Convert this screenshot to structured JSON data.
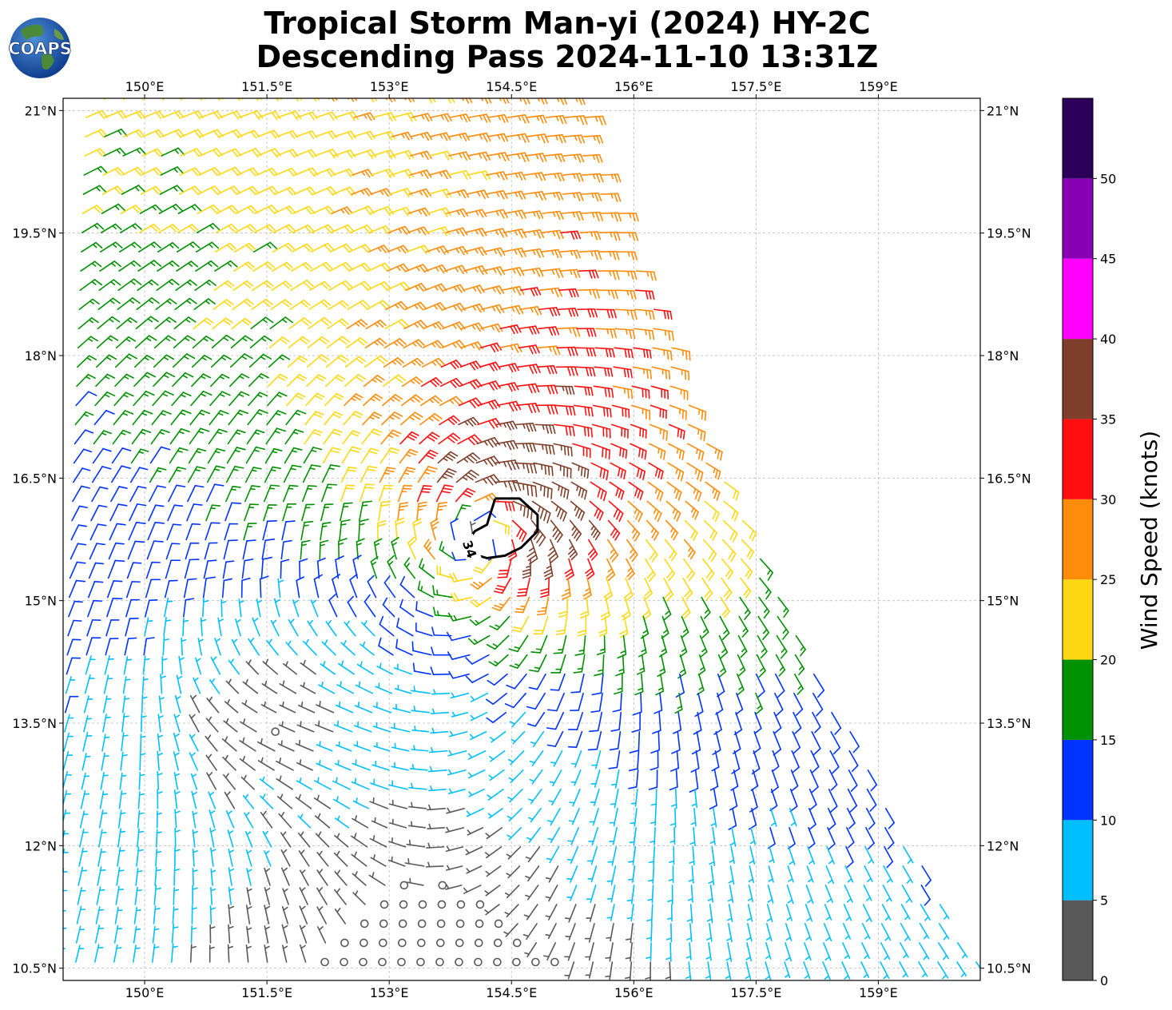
{
  "header": {
    "title_line1": "Tropical Storm Man-yi (2024) HY-2C",
    "title_line2": "Descending Pass 2024-11-10 13:31Z",
    "logo_text": "COAPS"
  },
  "map": {
    "lon_range": [
      149.0,
      160.25
    ],
    "lat_range": [
      10.35,
      21.15
    ],
    "lon_ticks": [
      {
        "value": 150,
        "label": "150°E"
      },
      {
        "value": 151.5,
        "label": "151.5°E"
      },
      {
        "value": 153,
        "label": "153°E"
      },
      {
        "value": 154.5,
        "label": "154.5°E"
      },
      {
        "value": 156,
        "label": "156°E"
      },
      {
        "value": 157.5,
        "label": "157.5°E"
      },
      {
        "value": 159,
        "label": "159°E"
      }
    ],
    "lat_ticks": [
      {
        "value": 21,
        "label": "21°N"
      },
      {
        "value": 19.5,
        "label": "19.5°N"
      },
      {
        "value": 18,
        "label": "18°N"
      },
      {
        "value": 16.5,
        "label": "16.5°N"
      },
      {
        "value": 15,
        "label": "15°N"
      },
      {
        "value": 13.5,
        "label": "13.5°N"
      },
      {
        "value": 12,
        "label": "12°N"
      },
      {
        "value": 10.5,
        "label": "10.5°N"
      }
    ],
    "gridlines": true,
    "storm_center": {
      "lon": 154.1,
      "lat": 15.9
    },
    "wind_contour": {
      "level_label": "34",
      "color": "#000000"
    }
  },
  "colorbar": {
    "label": "Wind Speed (knots)",
    "bins": [
      {
        "from": 0,
        "to": 5,
        "color": "#595959"
      },
      {
        "from": 5,
        "to": 10,
        "color": "#00BFFF"
      },
      {
        "from": 10,
        "to": 15,
        "color": "#0033FF"
      },
      {
        "from": 15,
        "to": 20,
        "color": "#009100"
      },
      {
        "from": 20,
        "to": 25,
        "color": "#FFD814"
      },
      {
        "from": 25,
        "to": 30,
        "color": "#FF8C0A"
      },
      {
        "from": 30,
        "to": 35,
        "color": "#FF0F0F"
      },
      {
        "from": 35,
        "to": 40,
        "color": "#7F3F2A"
      },
      {
        "from": 40,
        "to": 45,
        "color": "#FF00FF"
      },
      {
        "from": 45,
        "to": 50,
        "color": "#8800B4"
      },
      {
        "from": 50,
        "to": 55,
        "color": "#2C005A"
      }
    ],
    "tick_labels": [
      "0",
      "5",
      "10",
      "15",
      "20",
      "25",
      "30",
      "35",
      "40",
      "45",
      "50"
    ]
  }
}
